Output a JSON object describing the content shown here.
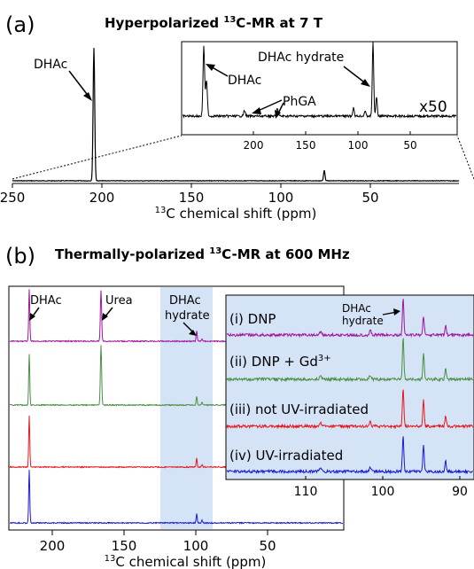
{
  "panel_a": {
    "label": "(a)",
    "title_pre": "Hyperpolarized ",
    "title_sup": "13",
    "title_post": "C-MR at 7 T",
    "main_ticks": [
      "250",
      "200",
      "150",
      "100",
      "50"
    ],
    "xlabel_sup": "13",
    "xlabel": "C chemical shift (ppm)",
    "main_annotation": "DHAc",
    "inset_ticks": [
      "200",
      "150",
      "100",
      "50"
    ],
    "inset_annotations": {
      "dhac": "DHAc",
      "phga": "PhGA",
      "hydrate": "DHAc hydrate"
    },
    "inset_scale": "x50"
  },
  "panel_b": {
    "label": "(b)",
    "title_pre": "Thermally-polarized ",
    "title_sup": "13",
    "title_post": "C-MR at 600 MHz",
    "peak_labels": {
      "dhac": "DHAc",
      "urea": "Urea",
      "hydrate_1": "DHAc",
      "hydrate_2": "hydrate"
    },
    "main_ticks": [
      "200",
      "150",
      "100",
      "50"
    ],
    "xlabel_sup": "13",
    "xlabel": "C chemical shift (ppm)",
    "inset_ticks": [
      "110",
      "100",
      "90"
    ],
    "inset_peak_label_1": "DHAc",
    "inset_peak_label_2": "hydrate",
    "traces": [
      {
        "label": "(i) DNP",
        "sup": "",
        "color": "#a0159d"
      },
      {
        "label": "(ii) DNP + Gd",
        "sup": "3+",
        "color": "#4a8f43"
      },
      {
        "label": "(iii) not UV-irradiated",
        "sup": "",
        "color": "#e6191d"
      },
      {
        "label": "(iv) UV-irradiated",
        "sup": "",
        "color": "#1a1ad4"
      }
    ],
    "highlight_color": "#d5e3f7"
  }
}
